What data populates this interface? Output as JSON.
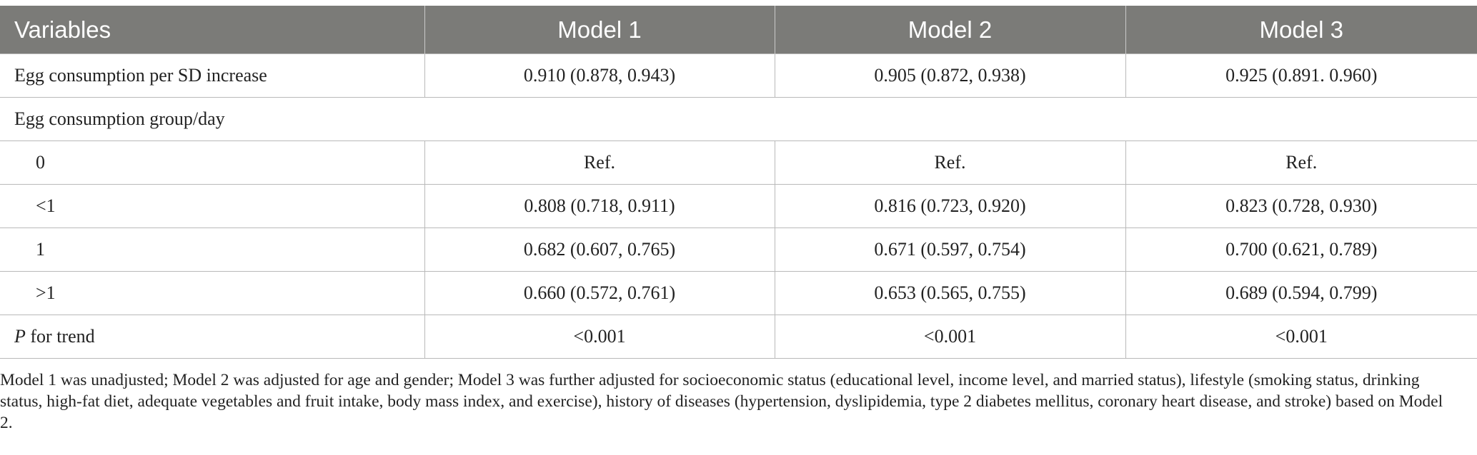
{
  "table": {
    "headers": [
      "Variables",
      "Model 1",
      "Model 2",
      "Model 3"
    ],
    "row_continuous": {
      "label": "Egg consumption per SD increase",
      "values": [
        "0.910 (0.878, 0.943)",
        "0.905 (0.872, 0.938)",
        "0.925 (0.891. 0.960)"
      ]
    },
    "group_heading": "Egg consumption group/day",
    "group_rows": [
      {
        "label": "0",
        "values": [
          "Ref.",
          "Ref.",
          "Ref."
        ]
      },
      {
        "label": "<1",
        "values": [
          "0.808 (0.718, 0.911)",
          "0.816 (0.723, 0.920)",
          "0.823 (0.728, 0.930)"
        ]
      },
      {
        "label": "1",
        "values": [
          "0.682 (0.607, 0.765)",
          "0.671 (0.597, 0.754)",
          "0.700 (0.621, 0.789)"
        ]
      },
      {
        "label": ">1",
        "values": [
          "0.660 (0.572, 0.761)",
          "0.653 (0.565, 0.755)",
          "0.689 (0.594, 0.799)"
        ]
      }
    ],
    "trend_row": {
      "label_italic": "P",
      "label_rest": " for trend",
      "values": [
        "<0.001",
        "<0.001",
        "<0.001"
      ]
    }
  },
  "footnote": "Model 1 was unadjusted; Model 2 was adjusted for age and gender; Model 3 was further adjusted for socioeconomic status (educational level, income level, and married status), lifestyle (smoking status, drinking status, high-fat diet, adequate vegetables and fruit intake, body mass index, and exercise), history of diseases (hypertension, dyslipidemia, type 2 diabetes mellitus, coronary heart disease, and stroke) based on Model 2."
}
